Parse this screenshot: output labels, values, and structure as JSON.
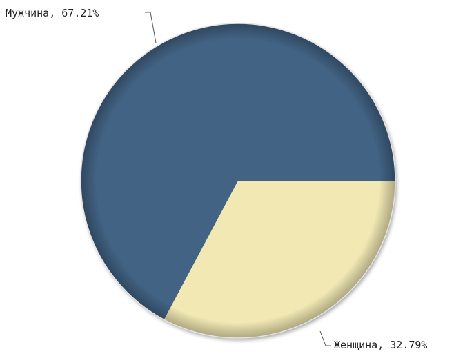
{
  "chart_data": {
    "type": "pie",
    "slices": [
      {
        "label": "Мужчина, 67.21%",
        "name": "Мужчина",
        "value": 67.21,
        "color": "#436384"
      },
      {
        "label": "Женщина, 32.79%",
        "name": "Женщина",
        "value": 32.79,
        "color": "#f1e8b3"
      }
    ],
    "title": "",
    "legend": "none",
    "label_style": "leader-lines",
    "start_angle_position": "3 o'clock, counter-clockwise"
  }
}
